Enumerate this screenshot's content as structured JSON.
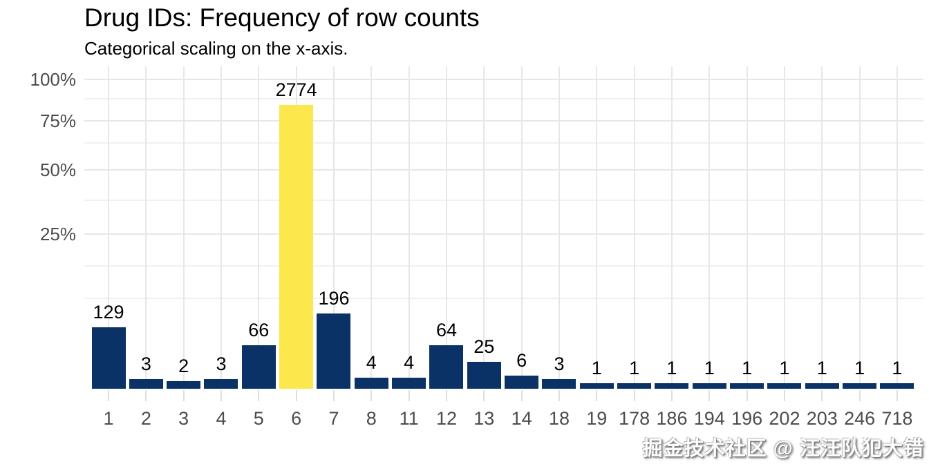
{
  "title": "Drug IDs: Frequency of row counts",
  "subtitle": "Categorical scaling on the x-axis.",
  "watermark": "掘金技术社区 @ 汪汪队犯大错",
  "colors": {
    "bar_fill": "#0a3267",
    "bar_highlight_fill": "#fce74d",
    "grid_major": "#e7e7e7",
    "grid_minor": "#f0f0f0",
    "axis_tick": "#dedede",
    "axis_text": "#4d4d4d",
    "label_text": "#000000",
    "background": "#ffffff"
  },
  "chart_data": {
    "type": "bar",
    "title": "Drug IDs: Frequency of row counts",
    "subtitle": "Categorical scaling on the x-axis.",
    "categories": [
      "1",
      "2",
      "3",
      "4",
      "5",
      "6",
      "7",
      "8",
      "11",
      "12",
      "13",
      "14",
      "18",
      "19",
      "178",
      "186",
      "194",
      "196",
      "202",
      "203",
      "246",
      "718"
    ],
    "values": [
      129,
      3,
      2,
      3,
      66,
      2774,
      196,
      4,
      4,
      64,
      25,
      6,
      3,
      1,
      1,
      1,
      1,
      1,
      1,
      1,
      1,
      1
    ],
    "bar_value_labels": [
      "129",
      "3",
      "2",
      "3",
      "66",
      "2774",
      "196",
      "4",
      "4",
      "64",
      "25",
      "6",
      "3",
      "1",
      "1",
      "1",
      "1",
      "1",
      "1",
      "1",
      "1",
      "1"
    ],
    "highlighted_category": "6",
    "y_axis": {
      "scale": "sqrt",
      "unit": "percent of total rows",
      "range": [
        0,
        100
      ],
      "ticks": [
        {
          "value": 100,
          "label": "100%"
        },
        {
          "value": 75,
          "label": "75%"
        },
        {
          "value": 50,
          "label": "50%"
        },
        {
          "value": 25,
          "label": "25%"
        }
      ]
    },
    "x_axis": {
      "type": "categorical",
      "label": ""
    },
    "grid": true,
    "legend": false
  }
}
